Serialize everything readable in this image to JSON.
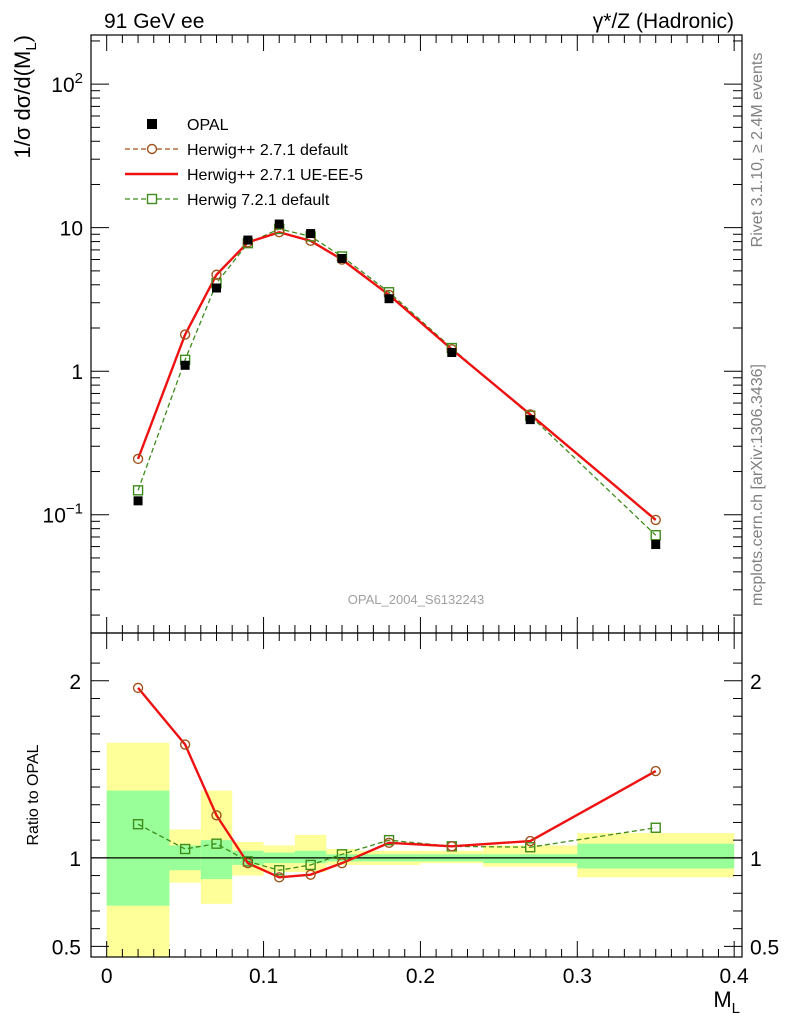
{
  "header": {
    "left_title": "91 GeV ee",
    "right_title": "γ*/Z (Hadronic)"
  },
  "side_labels": {
    "rivet": "Rivet 3.1.10, ≥ 2.4M events",
    "mcplots": "mcplots.cern.ch [arXiv:1306.3436]"
  },
  "watermark": "OPAL_2004_S6132243",
  "chart_data": [
    {
      "type": "scatter",
      "title": "",
      "ylabel": "1/σ dσ/d(M_L)",
      "xlabel": "M_L",
      "yscale": "log",
      "xlim": [
        -0.01,
        0.405
      ],
      "ylim": [
        0.015,
        220
      ],
      "y_ticks": [
        {
          "value": 0.1,
          "base": "10",
          "exp": "−1"
        },
        {
          "value": 1,
          "label": "1"
        },
        {
          "value": 10,
          "label": "10"
        },
        {
          "value": 100,
          "base": "10",
          "exp": "2"
        }
      ],
      "legend_position": "top-left",
      "x": [
        0.02,
        0.05,
        0.07,
        0.09,
        0.11,
        0.13,
        0.15,
        0.18,
        0.22,
        0.27,
        0.35
      ],
      "series": [
        {
          "name": "OPAL",
          "style": "data",
          "color": "#000000",
          "values": [
            0.125,
            1.1,
            3.8,
            8.2,
            10.6,
            9.1,
            6.1,
            3.2,
            1.35,
            0.46,
            0.062
          ]
        },
        {
          "name": "Herwig++ 2.7.1 default",
          "style": "dashed-circle",
          "color": "#a0521c",
          "values": [
            0.245,
            1.8,
            4.7,
            7.9,
            9.3,
            8.1,
            6.0,
            3.4,
            1.42,
            0.5,
            0.092
          ]
        },
        {
          "name": "Herwig++ 2.7.1 UE-EE-5",
          "style": "solid",
          "color": "#ee1111",
          "values": [
            0.245,
            1.8,
            4.7,
            7.9,
            9.3,
            8.1,
            6.0,
            3.4,
            1.42,
            0.5,
            0.092
          ]
        },
        {
          "name": "Herwig 7.2.1 default",
          "style": "dashed-square",
          "color": "#3e8c1c",
          "values": [
            0.148,
            1.2,
            4.1,
            7.8,
            9.8,
            8.7,
            6.3,
            3.55,
            1.45,
            0.49,
            0.072
          ]
        }
      ]
    },
    {
      "type": "line",
      "ylabel": "Ratio to OPAL",
      "xlabel": "M_L",
      "xlim": [
        -0.01,
        0.405
      ],
      "ylim": [
        0.44,
        2.27
      ],
      "y_ticks": [
        0.5,
        1,
        2
      ],
      "x_ticks": [
        0,
        0.1,
        0.2,
        0.3,
        0.4
      ],
      "x_tick_labels": [
        "0",
        "0.1",
        "0.2",
        "0.3",
        "0.4"
      ],
      "x": [
        0.02,
        0.05,
        0.07,
        0.09,
        0.11,
        0.13,
        0.15,
        0.18,
        0.22,
        0.27,
        0.35
      ],
      "bins": [
        [
          0,
          0.04
        ],
        [
          0.04,
          0.06
        ],
        [
          0.06,
          0.08
        ],
        [
          0.08,
          0.1
        ],
        [
          0.1,
          0.12
        ],
        [
          0.12,
          0.14
        ],
        [
          0.14,
          0.16
        ],
        [
          0.16,
          0.2
        ],
        [
          0.2,
          0.24
        ],
        [
          0.24,
          0.3
        ],
        [
          0.3,
          0.4
        ]
      ],
      "band_stat": [
        [
          0.73,
          1.38
        ],
        [
          0.93,
          1.07
        ],
        [
          0.88,
          1.1
        ],
        [
          0.96,
          1.04
        ],
        [
          0.97,
          1.03
        ],
        [
          0.97,
          1.04
        ],
        [
          0.98,
          1.02
        ],
        [
          0.98,
          1.02
        ],
        [
          0.98,
          1.02
        ],
        [
          0.97,
          1.02
        ],
        [
          0.94,
          1.08
        ]
      ],
      "band_total": [
        [
          0.4,
          1.65
        ],
        [
          0.86,
          1.16
        ],
        [
          0.74,
          1.38
        ],
        [
          0.9,
          1.09
        ],
        [
          0.92,
          1.07
        ],
        [
          0.92,
          1.13
        ],
        [
          0.96,
          1.05
        ],
        [
          0.96,
          1.04
        ],
        [
          0.97,
          1.04
        ],
        [
          0.95,
          1.07
        ],
        [
          0.89,
          1.14
        ]
      ],
      "series": [
        {
          "name": "Herwig++ 2.7.1 default",
          "style": "dashed-circle",
          "color": "#a0521c",
          "values": [
            1.96,
            1.64,
            1.24,
            0.97,
            0.89,
            0.905,
            0.97,
            1.085,
            1.065,
            1.095,
            1.49
          ]
        },
        {
          "name": "Herwig++ 2.7.1 UE-EE-5",
          "style": "solid",
          "color": "#ee1111",
          "values": [
            1.96,
            1.64,
            1.24,
            0.97,
            0.89,
            0.905,
            0.97,
            1.085,
            1.065,
            1.095,
            1.49
          ]
        },
        {
          "name": "Herwig 7.2.1 default",
          "style": "dashed-square",
          "color": "#3e8c1c",
          "values": [
            1.19,
            1.05,
            1.08,
            0.98,
            0.93,
            0.96,
            1.02,
            1.1,
            1.065,
            1.06,
            1.17
          ]
        }
      ]
    }
  ]
}
